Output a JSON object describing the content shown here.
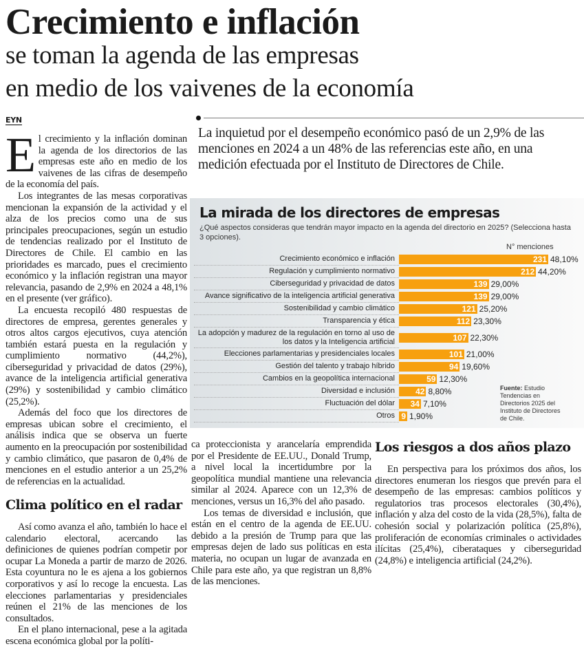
{
  "headline": {
    "title": "Crecimiento e inflación",
    "subtitle_1": "se toman la agenda de las empresas",
    "subtitle_2": "en medio de los vaivenes de la economía"
  },
  "author": "EYN",
  "lead": "La inquietud por el desempeño económico pasó de un 2,9% de las menciones en 2024 a un 48% de las referencias este año, en una medición efectuada por el Instituto de Directores de Chile.",
  "body": {
    "drop_cap": "E",
    "p1": "l crecimiento y la inflación dominan la agenda de los directorios de las empresas este año en medio de los vaivenes de las cifras de desempeño de la economía del país.",
    "p2": "Los integrantes de las mesas corporativas mencionan la expansión de la actividad y el alza de los precios como una de sus principales preocupaciones, según un estudio de tendencias realizado por el Instituto de Directores de Chile. El cambio en las prioridades es marcado, pues el crecimiento económico y la inflación registran una mayor relevancia, pasando de 2,9% en 2024 a 48,1% en el presente (ver gráfico).",
    "p3": "La encuesta recopiló 480 respuestas de directores de empresa, gerentes generales y otros altos cargos ejecutivos, cuya atención también estará puesta en la regulación y cumplimiento normativo (44,2%), ciberseguridad y privacidad de datos (29%), avance de la inteligencia artificial generativa (29%) y sostenibilidad y cambio climático (25,2%).",
    "p4": "Además del foco que los directores de empresas ubican sobre el crecimiento, el análisis indica que se observa un fuerte aumento en la preocupación por sostenibilidad y cambio climático, que pasaron de 0,4% de menciones en el estudio anterior a un 25,2% de referencias en la actualidad.",
    "h_clima": "Clima político en el radar",
    "p5": "Así como avanza el año, también lo hace el calendario electoral, acercando las definiciones de quienes podrían competir por ocupar La Moneda a partir de marzo de 2026. Esta coyuntura no le es ajena a los gobiernos corporativos y así lo recoge la encuesta. Las elecciones parlamentarias y presidenciales reúnen el 21% de las menciones de los consultados.",
    "p6": "En el plano internacional, pese a la agitada escena económica global por la políti-",
    "p7": "ca proteccionista y arancelaría emprendida por el Presidente de EE.UU., Donald Trump, a nivel local la incertidumbre por la geopolítica mundial mantiene una relevancia similar al 2024. Aparece con un 12,3% de menciones, versus un 16,3% del año pasado.",
    "p8": "Los temas de diversidad e inclusión, que están en el centro de la agenda de EE.UU. debido a la presión de Trump para que las empresas dejen de lado sus políticas en esta materia, no ocupan un lugar de avanzada en Chile para este año, ya que registran un 8,8% de las menciones.",
    "h_riesgos": "Los riesgos a dos años plazo",
    "p9": "En perspectiva para los próximos dos años, los directores enumeran los riesgos que prevén para el desempeño de las empresas: cambios políticos y regulatorios tras procesos electorales (30,4%), inflación y alza del costo de la vida (28,5%), falta de cohesión social y polarización política (25,8%), proliferación de economías criminales o actividades ilícitas (25,4%), ciberataques y ciberseguridad (24,8%) e inteligencia artificial (24,2%)."
  },
  "chart_data": {
    "type": "bar",
    "title": "La mirada de los directores de empresas",
    "subtitle": "¿Qué aspectos consideras que tendrán mayor impacto en la agenda del directorio en 2025? (Selecciona hasta 3 opciones).",
    "value_label": "N° menciones",
    "source_label": "Fuente:",
    "source": "Estudio Tendencias en Directorios 2025 del Instituto de Directores de Chile.",
    "bar_color": "#f7a00f",
    "categories": [
      "Crecimiento económico e inflación",
      "Regulación y cumplimiento normativo",
      "Ciberseguridad y privacidad de datos",
      "Avance significativo de la inteligencia artificial generativa",
      "Sostenibilidad y cambio climático",
      "Transparencia y ética",
      "La adopción y madurez de la regulación en torno al uso de los datos y la Inteligencia artificial",
      "Elecciones parlamentarias y presidenciales locales",
      "Gestión del talento y trabajo híbrido",
      "Cambios en la geopolítica internacional",
      "Diversidad e inclusión",
      "Fluctuación del dólar",
      "Otros"
    ],
    "values": [
      231,
      212,
      139,
      139,
      121,
      112,
      107,
      101,
      94,
      59,
      42,
      34,
      9
    ],
    "percent_labels": [
      "48,10%",
      "44,20%",
      "29,00%",
      "29,00%",
      "25,20%",
      "23,30%",
      "22,30%",
      "21,00%",
      "19,60%",
      "12,30%",
      "8,80%",
      "7,10%",
      "1,90%"
    ]
  }
}
